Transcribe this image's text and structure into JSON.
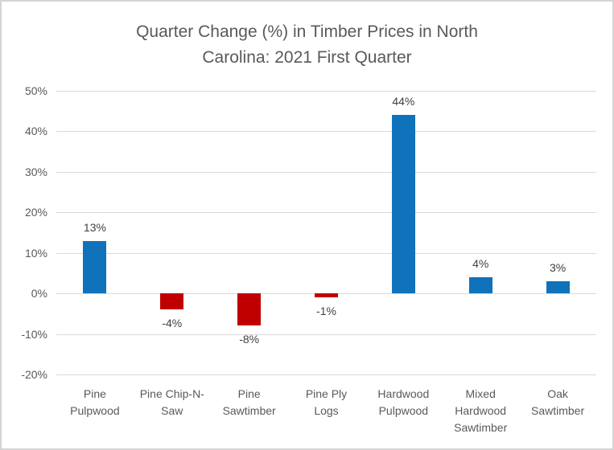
{
  "window": {
    "border_color": "#d4d4d4",
    "background_color": "#ffffff"
  },
  "chart_data": {
    "type": "bar",
    "title": "Quarter Change (%) in Timber Prices in North Carolina: 2021 First Quarter",
    "title_lines": [
      "Quarter Change (%) in Timber Prices in North",
      "Carolina: 2021 First Quarter"
    ],
    "categories": [
      "Pine Pulpwood",
      "Pine Chip-N-Saw",
      "Pine Sawtimber",
      "Pine Ply Logs",
      "Hardwood Pulpwood",
      "Mixed Hardwood Sawtimber",
      "Oak Sawtimber"
    ],
    "category_lines": [
      [
        "Pine",
        "Pulpwood"
      ],
      [
        "Pine Chip-N-",
        "Saw"
      ],
      [
        "Pine",
        "Sawtimber"
      ],
      [
        "Pine Ply",
        "Logs"
      ],
      [
        "Hardwood",
        "Pulpwood"
      ],
      [
        "Mixed",
        "Hardwood",
        "Sawtimber"
      ],
      [
        "Oak",
        "Sawtimber"
      ]
    ],
    "values": [
      13,
      -4,
      -8,
      -1,
      44,
      4,
      3
    ],
    "data_labels": [
      "13%",
      "-4%",
      "-8%",
      "-1%",
      "44%",
      "4%",
      "3%"
    ],
    "xlabel": "",
    "ylabel": "",
    "ylim": [
      -20,
      50
    ],
    "ytick_step": 10,
    "ytick_labels": [
      "50%",
      "40%",
      "30%",
      "20%",
      "10%",
      "0%",
      "-10%",
      "-20%"
    ],
    "grid": true,
    "legend": false,
    "colors": {
      "positive_bar": "#1072ba",
      "negative_bar": "#c00000",
      "gridline": "#d9d9d9",
      "title_text": "#595959",
      "axis_text": "#595959",
      "data_label_text": "#404040"
    }
  }
}
